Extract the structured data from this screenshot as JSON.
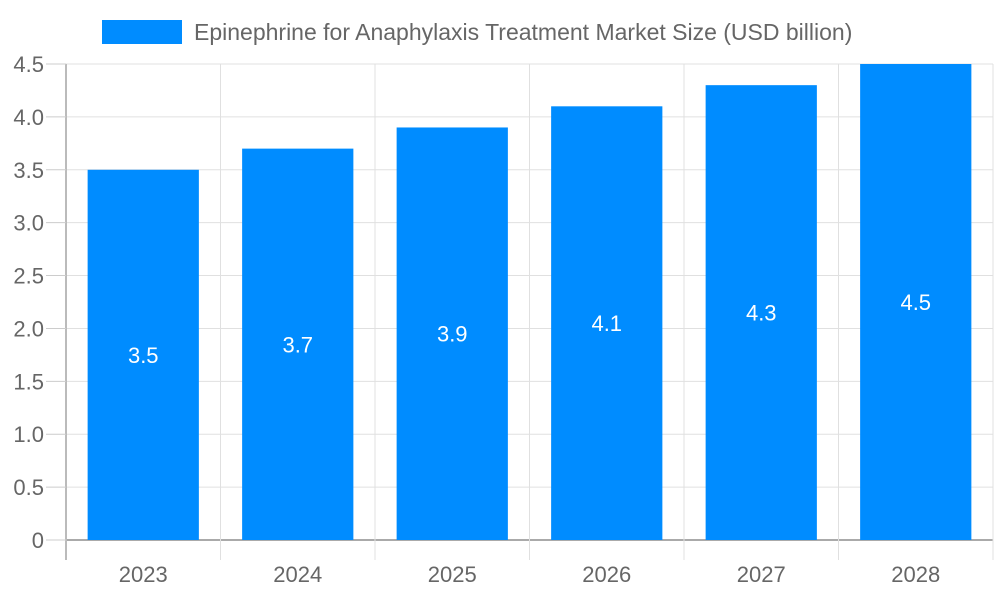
{
  "chart_data": {
    "type": "bar",
    "title": "",
    "categories": [
      "2023",
      "2024",
      "2025",
      "2026",
      "2027",
      "2028"
    ],
    "series": [
      {
        "name": "Epinephrine for Anaphylaxis Treatment Market Size (USD billion)",
        "values": [
          3.5,
          3.7,
          3.9,
          4.1,
          4.3,
          4.5
        ],
        "color": "#008cff"
      }
    ],
    "data_labels": [
      "3.5",
      "3.7",
      "3.9",
      "4.1",
      "4.3",
      "4.5"
    ],
    "xlabel": "",
    "ylabel": "",
    "ylim": [
      0,
      4.5
    ],
    "yticks": [
      "0",
      "0.5",
      "1.0",
      "1.5",
      "2.0",
      "2.5",
      "3.0",
      "3.5",
      "4.0",
      "4.5"
    ],
    "grid": true,
    "legend_position": "top"
  }
}
